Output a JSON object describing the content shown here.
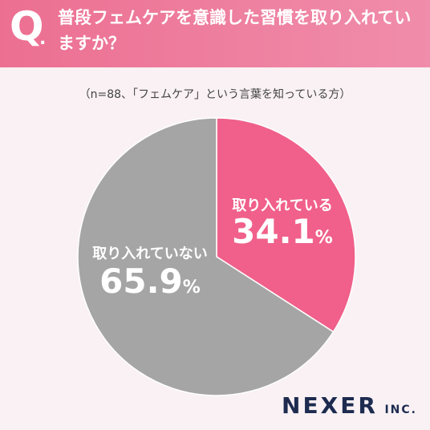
{
  "header": {
    "q_mark": "Q",
    "q_dot": ".",
    "question": "普段フェムケアを意識した習慣を取り入れていますか？"
  },
  "note": "（n=88、「フェムケア」という言葉を知っている方）",
  "chart_data": {
    "type": "pie",
    "categories": [
      "取り入れている",
      "取り入れていない"
    ],
    "values": [
      34.1,
      65.9
    ],
    "unit": "%",
    "colors": [
      "#f0608a",
      "#a5a5a5"
    ]
  },
  "labels": [
    {
      "name": "取り入れている",
      "value": "34.1",
      "unit": "%"
    },
    {
      "name": "取り入れていない",
      "value": "65.9",
      "unit": "%"
    }
  ],
  "logo": {
    "main": "NEXER",
    "suffix": "INC."
  }
}
